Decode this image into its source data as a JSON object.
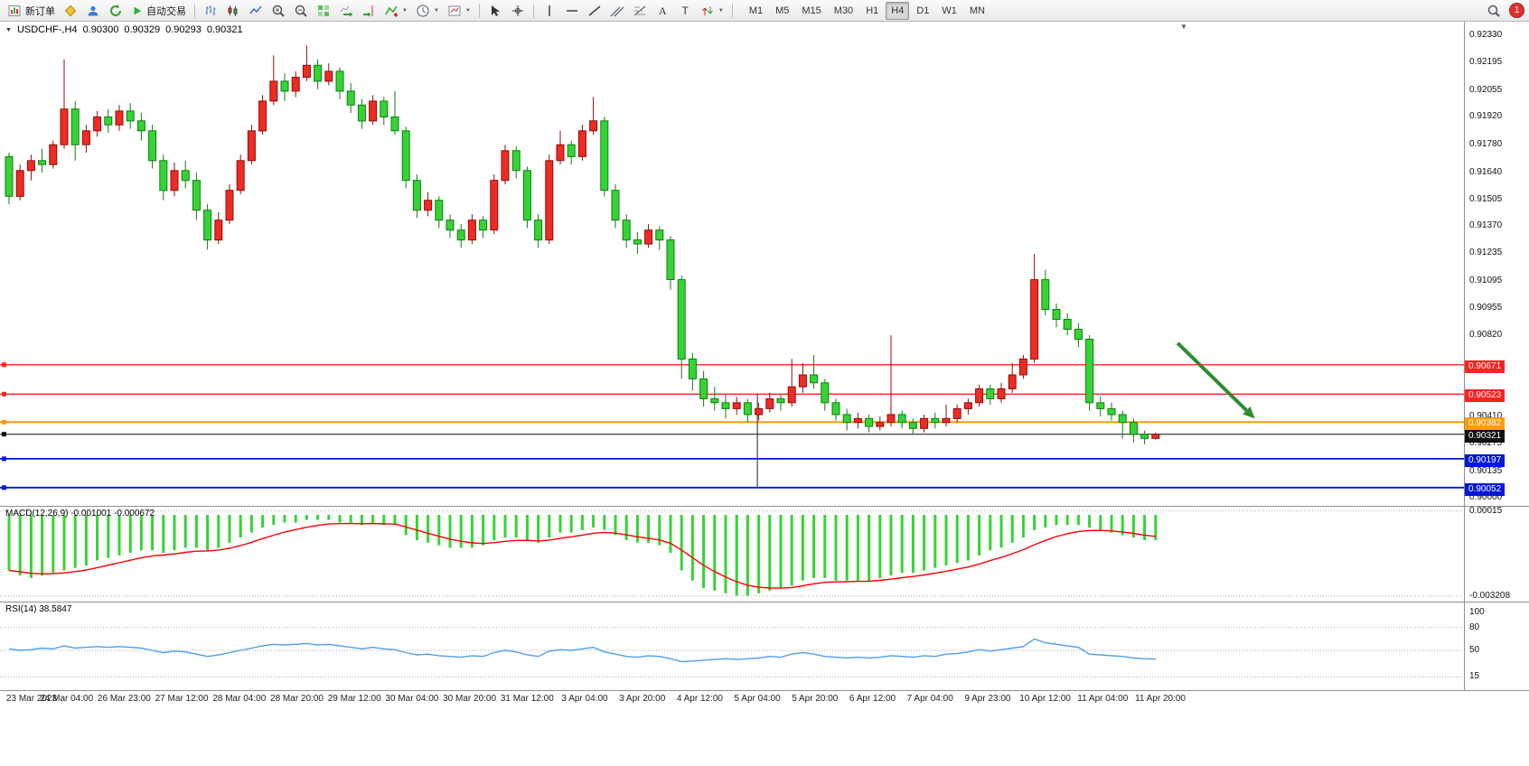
{
  "toolbar": {
    "new_order_label": "新订单",
    "autotrading_label": "自动交易",
    "timeframes": [
      "M1",
      "M5",
      "M15",
      "M30",
      "H1",
      "H4",
      "D1",
      "W1",
      "MN"
    ],
    "active_timeframe": "H4",
    "notification_count": "1",
    "caret_glyph": "▼"
  },
  "chart": {
    "legend": {
      "collapse_glyph": "▼",
      "symbol": "USDCHF-,H4",
      "open": "0.90300",
      "high": "0.90329",
      "low": "0.90293",
      "close": "0.90321"
    },
    "indicator_labels": {
      "macd": "MACD(12,26,9) -0.001001 -0.000672",
      "rsi": "RSI(14) 38.5847"
    },
    "colors": {
      "up": "#ee2c22",
      "up_dark": "#8d0e0e",
      "down": "#35d435",
      "down_dark": "#0f7d0f",
      "macd_hist": "#35d435",
      "macd_signal": "#ff0000",
      "rsi": "#4f9fe8",
      "arrow": "#2e8b2e"
    },
    "price_axis_labels": [
      "0.92330",
      "0.92195",
      "0.92055",
      "0.91920",
      "0.91780",
      "0.91640",
      "0.91505",
      "0.91370",
      "0.91235",
      "0.91095",
      "0.90955",
      "0.90820",
      "0.90410",
      "0.90275",
      "0.90135",
      "0.90000"
    ],
    "hlines": [
      {
        "price": 0.90671,
        "color": "#ff2020",
        "width": 1.4
      },
      {
        "price": 0.90523,
        "color": "#ff2020",
        "width": 1.4
      },
      {
        "price": 0.90382,
        "color": "#ff9c00",
        "width": 2
      },
      {
        "price": 0.90321,
        "color": "#101010",
        "width": 1
      },
      {
        "price": 0.90197,
        "color": "#0018d8",
        "width": 1.8
      },
      {
        "price": 0.90052,
        "color": "#0018d8",
        "width": 1.8
      }
    ],
    "badges": [
      {
        "label": "0.90671",
        "value": 0.90671,
        "color": "#ff2020"
      },
      {
        "label": "0.90523",
        "value": 0.90523,
        "color": "#ff2020"
      },
      {
        "label": "0.90382",
        "value": 0.90382,
        "color": "#ff9c00"
      },
      {
        "label": "0.90321",
        "value": 0.90321,
        "color": "#101010"
      },
      {
        "label": "0.90197",
        "value": 0.90197,
        "color": "#0018d8"
      },
      {
        "label": "0.90052",
        "value": 0.90052,
        "color": "#0018d8"
      }
    ],
    "annotations": {
      "vline": {
        "date_index": 13,
        "price_from": 0.90523,
        "price_to": 0.90052
      },
      "arrow": {
        "bar_from": 106,
        "price_from": 0.9078,
        "bar_to": 113,
        "price_to": 0.904
      }
    }
  },
  "chart_data": [
    {
      "type": "candlestick",
      "symbol": "USDCHF-",
      "timeframe": "H4",
      "note": "red = bullish, green = bearish (CN color convention)",
      "y_range": [
        0.8996,
        0.924
      ],
      "x_labels": [
        "23 Mar 2023",
        "24 Mar 04:00",
        "26 Mar 23:00",
        "27 Mar 12:00",
        "28 Mar 04:00",
        "28 Mar 20:00",
        "29 Mar 12:00",
        "30 Mar 04:00",
        "30 Mar 20:00",
        "31 Mar 12:00",
        "3 Apr 04:00",
        "3 Apr 20:00",
        "4 Apr 12:00",
        "5 Apr 04:00",
        "5 Apr 20:00",
        "6 Apr 12:00",
        "7 Apr 04:00",
        "9 Apr 23:00",
        "10 Apr 12:00",
        "11 Apr 04:00",
        "11 Apr 20:00"
      ],
      "ohlc": [
        [
          0.9172,
          0.9174,
          0.9148,
          0.9152
        ],
        [
          0.9152,
          0.9168,
          0.915,
          0.9165
        ],
        [
          0.9165,
          0.9173,
          0.916,
          0.917
        ],
        [
          0.917,
          0.9176,
          0.9164,
          0.9168
        ],
        [
          0.9168,
          0.918,
          0.9166,
          0.9178
        ],
        [
          0.9178,
          0.9221,
          0.9176,
          0.9196
        ],
        [
          0.9196,
          0.92,
          0.917,
          0.9178
        ],
        [
          0.9178,
          0.9188,
          0.9174,
          0.9185
        ],
        [
          0.9185,
          0.9195,
          0.9182,
          0.9192
        ],
        [
          0.9192,
          0.9196,
          0.9184,
          0.9188
        ],
        [
          0.9188,
          0.9198,
          0.9185,
          0.9195
        ],
        [
          0.9195,
          0.9199,
          0.9186,
          0.919
        ],
        [
          0.919,
          0.9194,
          0.918,
          0.9185
        ],
        [
          0.9185,
          0.9188,
          0.9166,
          0.917
        ],
        [
          0.917,
          0.9173,
          0.915,
          0.9155
        ],
        [
          0.9155,
          0.9169,
          0.9152,
          0.9165
        ],
        [
          0.9165,
          0.917,
          0.9156,
          0.916
        ],
        [
          0.916,
          0.9164,
          0.914,
          0.9145
        ],
        [
          0.9145,
          0.9148,
          0.9125,
          0.913
        ],
        [
          0.913,
          0.9144,
          0.9128,
          0.914
        ],
        [
          0.914,
          0.9158,
          0.9138,
          0.9155
        ],
        [
          0.9155,
          0.9173,
          0.9153,
          0.917
        ],
        [
          0.917,
          0.9188,
          0.9168,
          0.9185
        ],
        [
          0.9185,
          0.9203,
          0.9183,
          0.92
        ],
        [
          0.92,
          0.9223,
          0.9198,
          0.921
        ],
        [
          0.921,
          0.9214,
          0.92,
          0.9205
        ],
        [
          0.9205,
          0.9215,
          0.9202,
          0.9212
        ],
        [
          0.9212,
          0.9228,
          0.921,
          0.9218
        ],
        [
          0.9218,
          0.9221,
          0.9206,
          0.921
        ],
        [
          0.921,
          0.9219,
          0.9208,
          0.9215
        ],
        [
          0.9215,
          0.9217,
          0.9201,
          0.9205
        ],
        [
          0.9205,
          0.9209,
          0.9194,
          0.9198
        ],
        [
          0.9198,
          0.9201,
          0.9186,
          0.919
        ],
        [
          0.919,
          0.9203,
          0.9188,
          0.92
        ],
        [
          0.92,
          0.9202,
          0.9188,
          0.9192
        ],
        [
          0.9192,
          0.9205,
          0.9183,
          0.9185
        ],
        [
          0.9185,
          0.9187,
          0.9156,
          0.916
        ],
        [
          0.916,
          0.9163,
          0.9141,
          0.9145
        ],
        [
          0.9145,
          0.9154,
          0.9142,
          0.915
        ],
        [
          0.915,
          0.9152,
          0.9136,
          0.914
        ],
        [
          0.914,
          0.9143,
          0.9131,
          0.9135
        ],
        [
          0.9135,
          0.9138,
          0.9126,
          0.913
        ],
        [
          0.913,
          0.9143,
          0.9128,
          0.914
        ],
        [
          0.914,
          0.9142,
          0.9131,
          0.9135
        ],
        [
          0.9135,
          0.9163,
          0.9133,
          0.916
        ],
        [
          0.916,
          0.9178,
          0.9158,
          0.9175
        ],
        [
          0.9175,
          0.9177,
          0.9161,
          0.9165
        ],
        [
          0.9165,
          0.9167,
          0.9136,
          0.914
        ],
        [
          0.914,
          0.9143,
          0.9126,
          0.913
        ],
        [
          0.913,
          0.9173,
          0.9128,
          0.917
        ],
        [
          0.917,
          0.9185,
          0.9168,
          0.9178
        ],
        [
          0.9178,
          0.918,
          0.9168,
          0.9172
        ],
        [
          0.9172,
          0.9188,
          0.917,
          0.9185
        ],
        [
          0.9185,
          0.9202,
          0.9183,
          0.919
        ],
        [
          0.919,
          0.9192,
          0.9152,
          0.9155
        ],
        [
          0.9155,
          0.9158,
          0.9136,
          0.914
        ],
        [
          0.914,
          0.9143,
          0.9126,
          0.913
        ],
        [
          0.913,
          0.9134,
          0.9123,
          0.9128
        ],
        [
          0.9128,
          0.9138,
          0.9126,
          0.9135
        ],
        [
          0.9135,
          0.9137,
          0.9125,
          0.913
        ],
        [
          0.913,
          0.9132,
          0.9105,
          0.911
        ],
        [
          0.911,
          0.9112,
          0.906,
          0.907
        ],
        [
          0.907,
          0.9073,
          0.9054,
          0.906
        ],
        [
          0.906,
          0.9064,
          0.9046,
          0.905
        ],
        [
          0.905,
          0.9056,
          0.9044,
          0.9048
        ],
        [
          0.9048,
          0.9052,
          0.904,
          0.9045
        ],
        [
          0.9045,
          0.9051,
          0.9042,
          0.9048
        ],
        [
          0.9048,
          0.905,
          0.9038,
          0.9042
        ],
        [
          0.9042,
          0.9048,
          0.9039,
          0.9045
        ],
        [
          0.9045,
          0.9053,
          0.9043,
          0.905
        ],
        [
          0.905,
          0.9052,
          0.9044,
          0.9048
        ],
        [
          0.9048,
          0.907,
          0.9046,
          0.9056
        ],
        [
          0.9056,
          0.9068,
          0.9053,
          0.9062
        ],
        [
          0.9062,
          0.9072,
          0.9055,
          0.9058
        ],
        [
          0.9058,
          0.906,
          0.9044,
          0.9048
        ],
        [
          0.9048,
          0.905,
          0.9039,
          0.9042
        ],
        [
          0.9042,
          0.9045,
          0.9034,
          0.9038
        ],
        [
          0.9038,
          0.9043,
          0.9035,
          0.904
        ],
        [
          0.904,
          0.9042,
          0.9033,
          0.9036
        ],
        [
          0.9036,
          0.9041,
          0.9034,
          0.9038
        ],
        [
          0.9038,
          0.9082,
          0.9036,
          0.9042
        ],
        [
          0.9042,
          0.9044,
          0.9035,
          0.9038
        ],
        [
          0.9038,
          0.904,
          0.9032,
          0.9035
        ],
        [
          0.9035,
          0.9042,
          0.9033,
          0.904
        ],
        [
          0.904,
          0.9043,
          0.9035,
          0.9038
        ],
        [
          0.9038,
          0.9047,
          0.9036,
          0.904
        ],
        [
          0.904,
          0.9047,
          0.9038,
          0.9045
        ],
        [
          0.9045,
          0.905,
          0.9042,
          0.9048
        ],
        [
          0.9048,
          0.9057,
          0.9046,
          0.9055
        ],
        [
          0.9055,
          0.9057,
          0.9047,
          0.905
        ],
        [
          0.905,
          0.9058,
          0.9048,
          0.9055
        ],
        [
          0.9055,
          0.9068,
          0.9053,
          0.9062
        ],
        [
          0.9062,
          0.9072,
          0.906,
          0.907
        ],
        [
          0.907,
          0.9123,
          0.9068,
          0.911
        ],
        [
          0.911,
          0.9115,
          0.9092,
          0.9095
        ],
        [
          0.9095,
          0.9098,
          0.9086,
          0.909
        ],
        [
          0.909,
          0.9093,
          0.9082,
          0.9085
        ],
        [
          0.9085,
          0.9088,
          0.9076,
          0.908
        ],
        [
          0.908,
          0.9082,
          0.9044,
          0.9048
        ],
        [
          0.9048,
          0.9051,
          0.9041,
          0.9045
        ],
        [
          0.9045,
          0.9048,
          0.9039,
          0.9042
        ],
        [
          0.9042,
          0.9044,
          0.903,
          0.9038
        ],
        [
          0.9038,
          0.904,
          0.9028,
          0.9032
        ],
        [
          0.9032,
          0.9034,
          0.9027,
          0.903
        ],
        [
          0.903,
          0.90329,
          0.90293,
          0.90321
        ]
      ]
    },
    {
      "type": "bar",
      "name": "MACD(12,26,9)",
      "current_values": "-0.001001 -0.000672",
      "y_ticks": [
        {
          "value": 0.00015,
          "label": "0.00015"
        },
        {
          "value": -0.003208,
          "label": "-0.003208"
        }
      ],
      "histogram": [
        -0.0022,
        -0.0024,
        -0.0025,
        -0.0024,
        -0.0023,
        -0.0022,
        -0.0021,
        -0.002,
        -0.0018,
        -0.0017,
        -0.0016,
        -0.0015,
        -0.0014,
        -0.0014,
        -0.0015,
        -0.0014,
        -0.0013,
        -0.0013,
        -0.0014,
        -0.0013,
        -0.0011,
        -0.0009,
        -0.0007,
        -0.0005,
        -0.0004,
        -0.0003,
        -0.0003,
        -0.0002,
        -0.0002,
        -0.0002,
        -0.0003,
        -0.0003,
        -0.0004,
        -0.0003,
        -0.0004,
        -0.0004,
        -0.0008,
        -0.001,
        -0.0011,
        -0.0012,
        -0.0013,
        -0.0013,
        -0.0013,
        -0.0012,
        -0.001,
        -0.0009,
        -0.0009,
        -0.001,
        -0.0011,
        -0.0009,
        -0.0007,
        -0.0007,
        -0.0006,
        -0.0005,
        -0.0006,
        -0.0008,
        -0.001,
        -0.0011,
        -0.0011,
        -0.0012,
        -0.0015,
        -0.0022,
        -0.0026,
        -0.0029,
        -0.003,
        -0.0031,
        -0.0032,
        -0.0032,
        -0.0031,
        -0.003,
        -0.0029,
        -0.0028,
        -0.0026,
        -0.0025,
        -0.0025,
        -0.0026,
        -0.0026,
        -0.0026,
        -0.0026,
        -0.0025,
        -0.0024,
        -0.0023,
        -0.0023,
        -0.0022,
        -0.0021,
        -0.002,
        -0.0019,
        -0.0018,
        -0.0016,
        -0.0014,
        -0.0013,
        -0.0011,
        -0.0009,
        -0.0006,
        -0.0005,
        -0.0004,
        -0.0004,
        -0.0004,
        -0.0005,
        -0.0006,
        -0.0007,
        -0.0008,
        -0.0009,
        -0.001,
        -0.001
      ]
    },
    {
      "type": "line",
      "name": "RSI(14)",
      "current_value": "38.5847",
      "levels": [
        100,
        80,
        50,
        15
      ],
      "level_labels": [
        "100",
        "80",
        "50",
        "15"
      ],
      "values": [
        52,
        50,
        51,
        53,
        52,
        56,
        53,
        54,
        55,
        54,
        55,
        54,
        53,
        50,
        47,
        49,
        48,
        45,
        42,
        44,
        47,
        50,
        53,
        56,
        58,
        57,
        58,
        59,
        57,
        58,
        56,
        54,
        52,
        54,
        52,
        51,
        47,
        44,
        45,
        43,
        42,
        41,
        43,
        42,
        47,
        50,
        48,
        44,
        42,
        49,
        51,
        50,
        52,
        54,
        48,
        45,
        42,
        41,
        43,
        42,
        39,
        35,
        36,
        37,
        38,
        39,
        38,
        39,
        40,
        42,
        41,
        45,
        47,
        45,
        42,
        41,
        40,
        41,
        40,
        41,
        43,
        42,
        41,
        43,
        42,
        45,
        46,
        48,
        51,
        49,
        51,
        53,
        55,
        65,
        60,
        58,
        56,
        54,
        45,
        44,
        43,
        42,
        40,
        39,
        38.6
      ]
    }
  ]
}
